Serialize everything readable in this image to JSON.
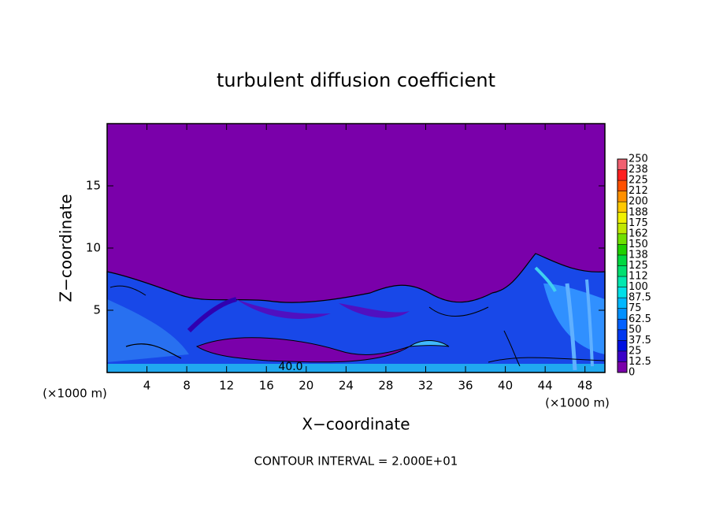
{
  "chart_data": {
    "type": "contour",
    "title": "turbulent diffusion coefficient",
    "x_label": "X−coordinate",
    "y_label": "Z−coordinate",
    "x_unit_labels": [
      "(×1000 m)",
      "(×1000 m)"
    ],
    "xlim": [
      0,
      50
    ],
    "xticks": [
      4,
      8,
      12,
      16,
      20,
      24,
      28,
      32,
      36,
      40,
      44,
      48
    ],
    "ylim": [
      0,
      20
    ],
    "yticks": [
      5,
      10,
      15
    ],
    "contour_label": "40.0",
    "note": "CONTOUR INTERVAL = 2.000E+01",
    "colorbar": {
      "levels": [
        0,
        12.5,
        25,
        37.5,
        50,
        62.5,
        75,
        87.5,
        100,
        {
          "value": 112.5,
          "label": "112"
        },
        125,
        {
          "value": 137.5,
          "label": "138"
        },
        150,
        {
          "value": 162.5,
          "label": "162"
        },
        175,
        {
          "value": 187.5,
          "label": "188"
        },
        200,
        {
          "value": 212.5,
          "label": "212"
        },
        225,
        {
          "value": 237.5,
          "label": "238"
        },
        250
      ],
      "colors": [
        "#7a00aa",
        "#3a00c8",
        "#0010e0",
        "#0038f0",
        "#0060ff",
        "#0090ff",
        "#00b8ff",
        "#00e0e8",
        "#00e8b0",
        "#00e070",
        "#00d840",
        "#20d000",
        "#70e000",
        "#c0e800",
        "#f0f000",
        "#ffc800",
        "#ff9000",
        "#ff5000",
        "#ff2020",
        "#f06070"
      ]
    }
  }
}
